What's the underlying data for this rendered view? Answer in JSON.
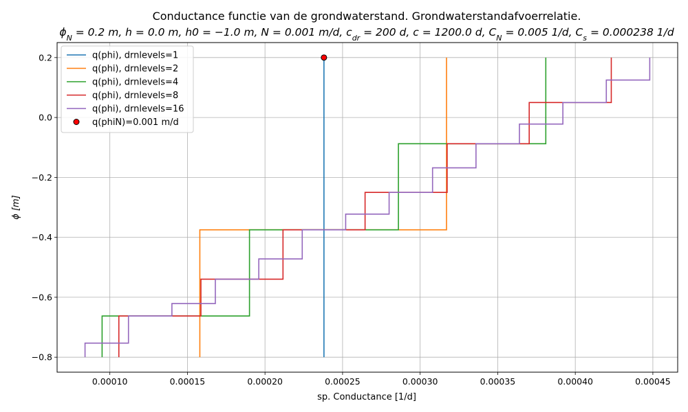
{
  "chart_data": {
    "type": "line",
    "title": "Conductance functie van de grondwaterstand. Grondwaterstandafvoerrelatie.",
    "subtitle": "ϕ_N = 0.2 m, h = 0.0 m, h0 = −1.0 m, N = 0.001 m/d, c_dr = 200 d, c = 1200.0 d, C_N = 0.005 1/d, C_s = 0.000238 1/d",
    "xlabel": "sp. Conductance [1/d]",
    "ylabel": "ϕ [m]",
    "xlim": [
      6.6e-05,
      0.000466
    ],
    "ylim": [
      -0.85,
      0.25
    ],
    "xticks": [
      0.0001,
      0.00015,
      0.0002,
      0.00025,
      0.0003,
      0.00035,
      0.0004,
      0.00045
    ],
    "xtick_labels": [
      "0.00010",
      "0.00015",
      "0.00020",
      "0.00025",
      "0.00030",
      "0.00035",
      "0.00040",
      "0.00045"
    ],
    "yticks": [
      -0.8,
      -0.6,
      -0.4,
      -0.2,
      0.0,
      0.2
    ],
    "ytick_labels": [
      "−0.8",
      "−0.6",
      "−0.4",
      "−0.2",
      "0.0",
      "0.2"
    ],
    "grid": true,
    "legend_position": "top-left",
    "series": [
      {
        "name": "q(phi), drnlevels=1",
        "color": "#1f77b4",
        "x": [
          0.000238,
          0.000238
        ],
        "y": [
          -0.8,
          0.2
        ]
      },
      {
        "name": "q(phi), drnlevels=2",
        "color": "#ff7f0e",
        "x": [
          0.000158,
          0.000158,
          0.000317,
          0.000317
        ],
        "y": [
          -0.8,
          -0.375,
          -0.375,
          0.2
        ]
      },
      {
        "name": "q(phi), drnlevels=4",
        "color": "#2ca02c",
        "x": [
          9.5e-05,
          9.5e-05,
          0.00019,
          0.00019,
          0.000286,
          0.000286,
          0.000381,
          0.000381
        ],
        "y": [
          -0.8,
          -0.6625,
          -0.6625,
          -0.375,
          -0.375,
          -0.0875,
          -0.0875,
          0.2
        ]
      },
      {
        "name": "q(phi), drnlevels=8",
        "color": "#d62728",
        "x": [
          0.0001058,
          0.0001058,
          0.0001587,
          0.0001587,
          0.0002116,
          0.0002116,
          0.0002645,
          0.0002645,
          0.0003174,
          0.0003174,
          0.0003703,
          0.0003703,
          0.0004232,
          0.0004232
        ],
        "y": [
          -0.8,
          -0.6625,
          -0.6625,
          -0.5396,
          -0.5396,
          -0.375,
          -0.375,
          -0.25,
          -0.25,
          -0.0875,
          -0.0875,
          0.05,
          0.05,
          0.2
        ]
      },
      {
        "name": "q(phi), drnlevels=16",
        "color": "#9467bd",
        "x": [
          8.4e-05,
          8.4e-05,
          0.000112,
          0.000112,
          0.00014,
          0.00014,
          0.000168,
          0.000168,
          0.000196,
          0.000196,
          0.000224,
          0.000224,
          0.000252,
          0.000252,
          0.00028,
          0.00028,
          0.000308,
          0.000308,
          0.000336,
          0.000336,
          0.000364,
          0.000364,
          0.000392,
          0.000392,
          0.00042,
          0.00042,
          0.000448,
          0.000448
        ],
        "y": [
          -0.8,
          -0.753,
          -0.753,
          -0.6625,
          -0.6625,
          -0.621,
          -0.621,
          -0.5396,
          -0.5396,
          -0.472,
          -0.472,
          -0.375,
          -0.375,
          -0.3225,
          -0.3225,
          -0.25,
          -0.25,
          -0.168,
          -0.168,
          -0.0875,
          -0.0875,
          -0.022,
          -0.022,
          0.05,
          0.05,
          0.125,
          0.125,
          0.2
        ]
      }
    ],
    "points": [
      {
        "name": "q(phiN)=0.001 m/d",
        "x": 0.000238,
        "y": 0.2,
        "color": "#ff0000",
        "edge_color": "#000000"
      }
    ]
  }
}
